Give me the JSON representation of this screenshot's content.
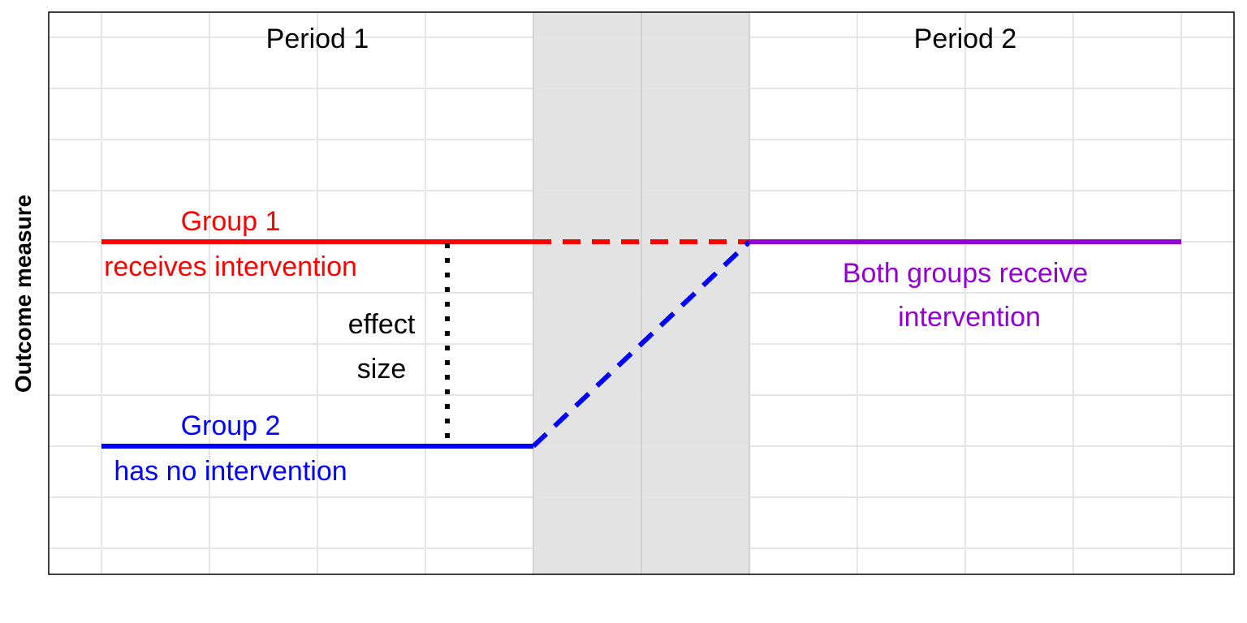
{
  "diagram": {
    "y_axis_label": "Outcome measure",
    "periods": [
      {
        "label": "Period 1"
      },
      {
        "label": "Period 2"
      }
    ],
    "groups": [
      {
        "name": "Group 1",
        "description": "receives intervention",
        "color": "#ff0000"
      },
      {
        "name": "Group 2",
        "description": "has no intervention",
        "color": "#0000ff"
      }
    ],
    "combined": {
      "line1": "Both groups receive",
      "line2": "intervention",
      "color": "#9400d3"
    },
    "effect": {
      "line1": "effect",
      "line2": "size"
    },
    "colors": {
      "washout_band": "#e3e3e3",
      "grid": "#e5e5e5",
      "frame": "#000000"
    }
  }
}
